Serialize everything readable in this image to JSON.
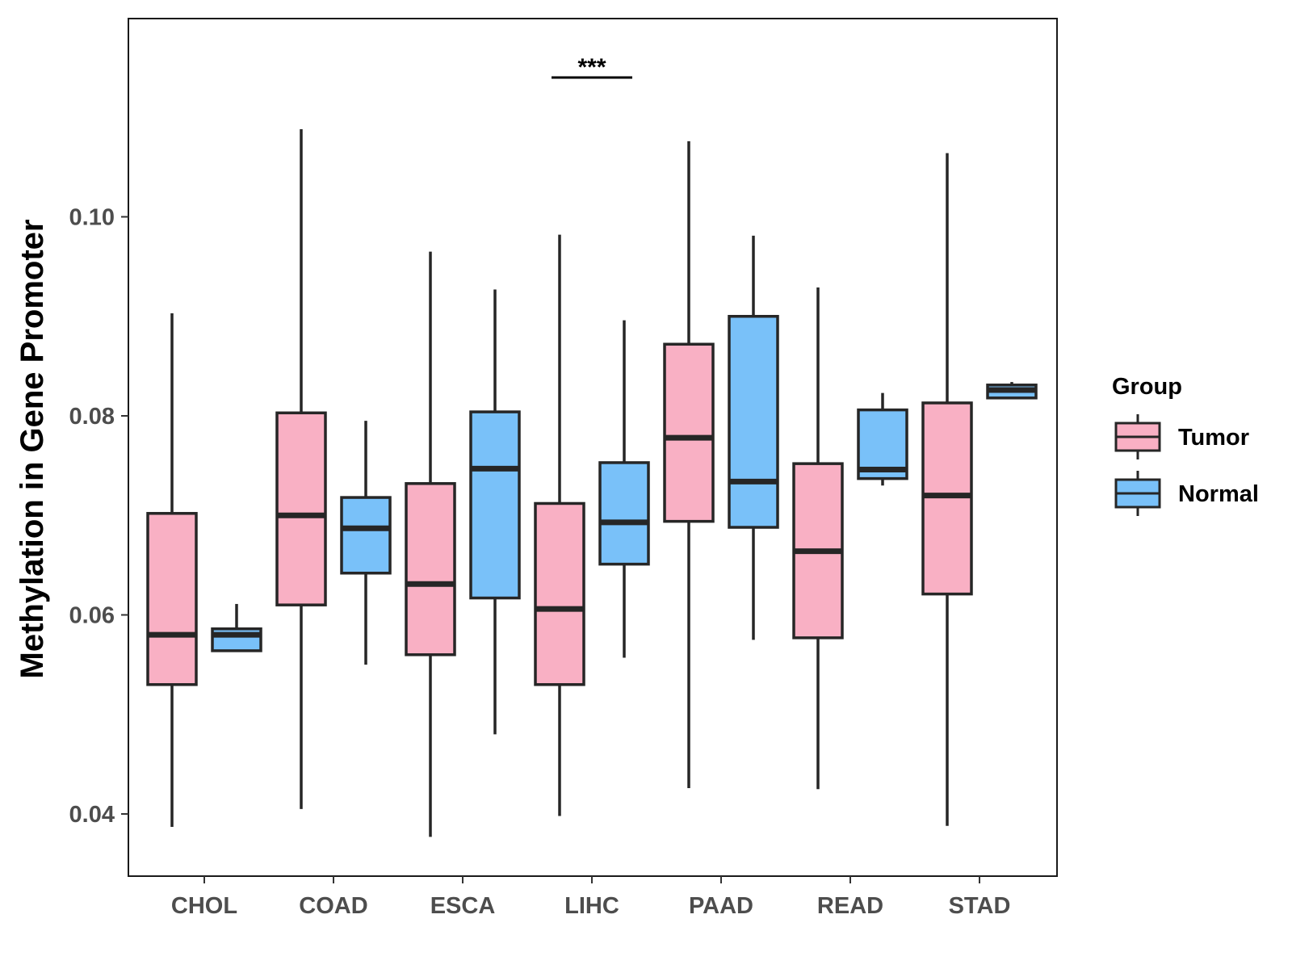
{
  "chart_data": {
    "type": "boxplot",
    "title": "",
    "xlabel": "",
    "ylabel": "Methylation in Gene Promoter",
    "ylim": [
      0.034,
      0.12
    ],
    "yticks": [
      0.04,
      0.06,
      0.08,
      0.1
    ],
    "ytick_labels": [
      "0.04",
      "0.06",
      "0.08",
      "0.10"
    ],
    "categories": [
      "CHOL",
      "COAD",
      "ESCA",
      "LIHC",
      "PAAD",
      "READ",
      "STAD"
    ],
    "colors": {
      "Tumor": "#F9B0C4",
      "Normal": "#79C1F9",
      "stroke": "#262626"
    },
    "legend": {
      "title": "Group",
      "position": "right",
      "entries": [
        "Tumor",
        "Normal"
      ]
    },
    "series": [
      {
        "name": "Tumor",
        "boxes": [
          {
            "min": 0.0387,
            "q1": 0.053,
            "median": 0.058,
            "q3": 0.0702,
            "max": 0.0903
          },
          {
            "min": 0.0405,
            "q1": 0.061,
            "median": 0.07,
            "q3": 0.0803,
            "max": 0.1088
          },
          {
            "min": 0.0377,
            "q1": 0.056,
            "median": 0.0631,
            "q3": 0.0732,
            "max": 0.0965
          },
          {
            "min": 0.0398,
            "q1": 0.053,
            "median": 0.0606,
            "q3": 0.0712,
            "max": 0.0982
          },
          {
            "min": 0.0426,
            "q1": 0.0694,
            "median": 0.0778,
            "q3": 0.0872,
            "max": 0.1076
          },
          {
            "min": 0.0425,
            "q1": 0.0577,
            "median": 0.0664,
            "q3": 0.0752,
            "max": 0.0929
          },
          {
            "min": 0.0388,
            "q1": 0.0621,
            "median": 0.072,
            "q3": 0.0813,
            "max": 0.1064
          }
        ]
      },
      {
        "name": "Normal",
        "boxes": [
          {
            "min": 0.0564,
            "q1": 0.0564,
            "median": 0.058,
            "q3": 0.0586,
            "max": 0.0611
          },
          {
            "min": 0.055,
            "q1": 0.0642,
            "median": 0.0687,
            "q3": 0.0718,
            "max": 0.0795
          },
          {
            "min": 0.048,
            "q1": 0.0617,
            "median": 0.0747,
            "q3": 0.0804,
            "max": 0.0927
          },
          {
            "min": 0.0557,
            "q1": 0.0651,
            "median": 0.0693,
            "q3": 0.0753,
            "max": 0.0896
          },
          {
            "min": 0.0575,
            "q1": 0.0688,
            "median": 0.0734,
            "q3": 0.09,
            "max": 0.0981
          },
          {
            "min": 0.073,
            "q1": 0.0737,
            "median": 0.0746,
            "q3": 0.0806,
            "max": 0.0823
          },
          {
            "min": 0.0818,
            "q1": 0.0818,
            "median": 0.0826,
            "q3": 0.0831,
            "max": 0.0834
          }
        ]
      }
    ],
    "annotations": [
      {
        "text": "***",
        "category": "LIHC",
        "y": 0.114
      }
    ]
  }
}
